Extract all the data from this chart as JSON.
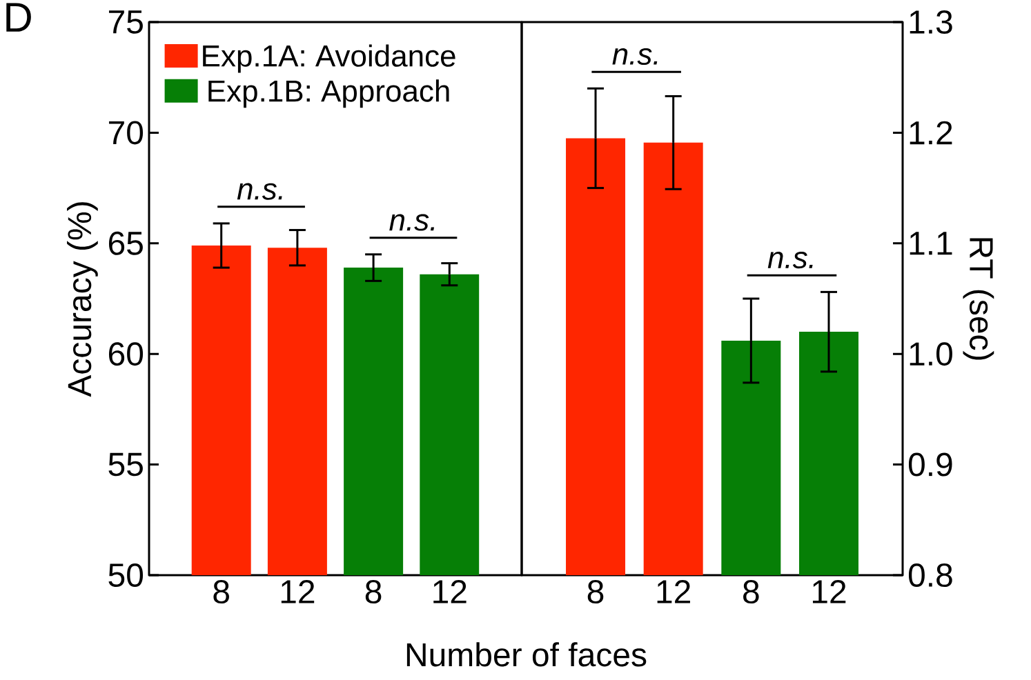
{
  "chart_data": [
    {
      "type": "bar",
      "title": "D",
      "xlabel": "Number of faces",
      "ylabel": "Accuracy (%)",
      "categories": [
        "8",
        "12",
        "8",
        "12"
      ],
      "series": [
        {
          "name": "Exp.1A: Avoidance",
          "color": "#ff2600",
          "values": [
            64.9,
            64.8,
            null,
            null
          ],
          "errors": [
            1.0,
            0.8,
            null,
            null
          ]
        },
        {
          "name": "Exp.1B: Approach",
          "color": "#067f06",
          "values": [
            null,
            null,
            63.9,
            63.6
          ],
          "errors": [
            null,
            null,
            0.6,
            0.5
          ]
        }
      ],
      "ylim": [
        50,
        75
      ],
      "yticks": [
        50,
        55,
        60,
        65,
        70,
        75
      ],
      "legend": "top left",
      "annotations": [
        "n.s.",
        "n.s."
      ]
    },
    {
      "type": "bar",
      "y2label": "RT (sec)",
      "categories": [
        "8",
        "12",
        "8",
        "12"
      ],
      "series": [
        {
          "color": "#ff2600",
          "axis": "y2",
          "values": [
            1.195,
            1.191,
            null,
            null
          ],
          "errors": [
            0.045,
            0.042,
            null,
            null
          ]
        },
        {
          "color": "#067f06",
          "axis": "y2",
          "values": [
            null,
            null,
            1.012,
            1.02
          ],
          "errors": [
            null,
            null,
            0.038,
            0.036
          ]
        }
      ],
      "y2lim": [
        0.8,
        1.3
      ],
      "y2ticks": [
        0.8,
        0.9,
        {
          "value": 1.0,
          "label": "1.0"
        },
        1.1,
        1.2,
        1.3
      ],
      "annotations": [
        "n.s.",
        "n.s."
      ]
    }
  ]
}
